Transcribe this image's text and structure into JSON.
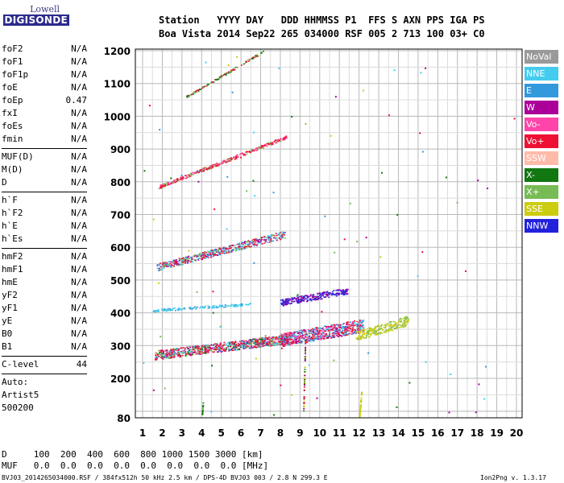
{
  "logo": {
    "line1": "Lowell",
    "line2": "DIGISONDE"
  },
  "header": {
    "labels_row": "Station   YYYY DAY   DDD HHMMSS P1  FFS S AXN PPS IGA PS",
    "values_row": "Boa Vista 2014 Sep22 265 034000 RSF 005 2 713 100 03+ C0"
  },
  "params": {
    "group1": [
      {
        "name": "foF2",
        "value": "N/A"
      },
      {
        "name": "foF1",
        "value": "N/A"
      },
      {
        "name": "foF1p",
        "value": "N/A"
      },
      {
        "name": "foE",
        "value": "N/A"
      },
      {
        "name": "foEp",
        "value": "0.47"
      },
      {
        "name": "fxI",
        "value": "N/A"
      },
      {
        "name": "foEs",
        "value": "N/A"
      },
      {
        "name": "fmin",
        "value": "N/A"
      }
    ],
    "group2": [
      {
        "name": "MUF(D)",
        "value": "N/A"
      },
      {
        "name": "M(D)",
        "value": "N/A"
      },
      {
        "name": "D",
        "value": "N/A"
      }
    ],
    "group3": [
      {
        "name": "h`F",
        "value": "N/A"
      },
      {
        "name": "h`F2",
        "value": "N/A"
      },
      {
        "name": "h`E",
        "value": "N/A"
      },
      {
        "name": "h`Es",
        "value": "N/A"
      }
    ],
    "group4": [
      {
        "name": "hmF2",
        "value": "N/A"
      },
      {
        "name": "hmF1",
        "value": "N/A"
      },
      {
        "name": "hmE",
        "value": "N/A"
      },
      {
        "name": "yF2",
        "value": "N/A"
      },
      {
        "name": "yF1",
        "value": "N/A"
      },
      {
        "name": "yE",
        "value": "N/A"
      },
      {
        "name": "B0",
        "value": "N/A"
      },
      {
        "name": "B1",
        "value": "N/A"
      }
    ],
    "clevel": {
      "name": "C-level",
      "value": "44"
    },
    "auto": [
      "Auto:",
      "Artist5",
      "500200"
    ]
  },
  "legend": [
    {
      "label": "NoVal",
      "color": "#999999"
    },
    {
      "label": "NNE",
      "color": "#44ccee"
    },
    {
      "label": "E",
      "color": "#3399dd"
    },
    {
      "label": "W",
      "color": "#aa0099"
    },
    {
      "label": "Vo-",
      "color": "#ff44aa"
    },
    {
      "label": "Vo+",
      "color": "#ee1133"
    },
    {
      "label": "SSW",
      "color": "#ffbbaa"
    },
    {
      "label": "X-",
      "color": "#117711"
    },
    {
      "label": "X+",
      "color": "#77bb55"
    },
    {
      "label": "SSE",
      "color": "#cccc11"
    },
    {
      "label": "NNW",
      "color": "#2222dd"
    }
  ],
  "chart_data": {
    "type": "scatter",
    "x_ticks": [
      "1",
      "2",
      "3",
      "4",
      "5",
      "6",
      "7",
      "8",
      "9",
      "10",
      "11",
      "12",
      "13",
      "14",
      "15",
      "16",
      "17",
      "18",
      "19",
      "20"
    ],
    "y_ticks": [
      "80",
      "200",
      "300",
      "400",
      "500",
      "600",
      "700",
      "800",
      "900",
      "1000",
      "1100",
      "1200"
    ],
    "xlim": [
      1,
      20
    ],
    "ylim": [
      80,
      1200
    ],
    "grid": true,
    "legend_position": "right",
    "traces": [
      {
        "name": "1st-hop O/X trace",
        "series": "mixed",
        "x_range": [
          1.6,
          12.2
        ],
        "y_range": [
          270,
          360
        ]
      },
      {
        "name": "NNE oblique trace",
        "series": "NNE",
        "x_range": [
          1.5,
          6.5
        ],
        "y_range": [
          405,
          430
        ]
      },
      {
        "name": "NNW trace",
        "series": "NNW",
        "x_range": [
          8.0,
          11.4
        ],
        "y_range": [
          430,
          470
        ]
      },
      {
        "name": "SSE trace",
        "series": "SSE",
        "x_range": [
          12.0,
          14.5
        ],
        "y_range": [
          330,
          380
        ]
      },
      {
        "name": "2nd-hop trace",
        "series": "mixed",
        "x_range": [
          1.7,
          8.2
        ],
        "y_range": [
          535,
          650
        ]
      },
      {
        "name": "3rd-hop trace",
        "series": "Vo+",
        "x_range": [
          1.8,
          8.3
        ],
        "y_range": [
          785,
          940
        ]
      },
      {
        "name": "4th-hop trace",
        "series": "X+",
        "x_range": [
          3.2,
          7.1
        ],
        "y_range": [
          1055,
          1200
        ]
      }
    ]
  },
  "footer": {
    "d_row": "D     100  200  400  600  800 1000 1500 3000 [km]",
    "muf_row": "MUF   0.0  0.0  0.0  0.0  0.0  0.0  0.0  0.0 [MHz]",
    "file_info": "BVJ03_2014265034000.RSF / 384fx512h 50 kHz 2.5 km / DPS-4D BVJ03 003 / 2.8 N 299.3 E",
    "version": "Ion2Png v. 1.3.17"
  }
}
